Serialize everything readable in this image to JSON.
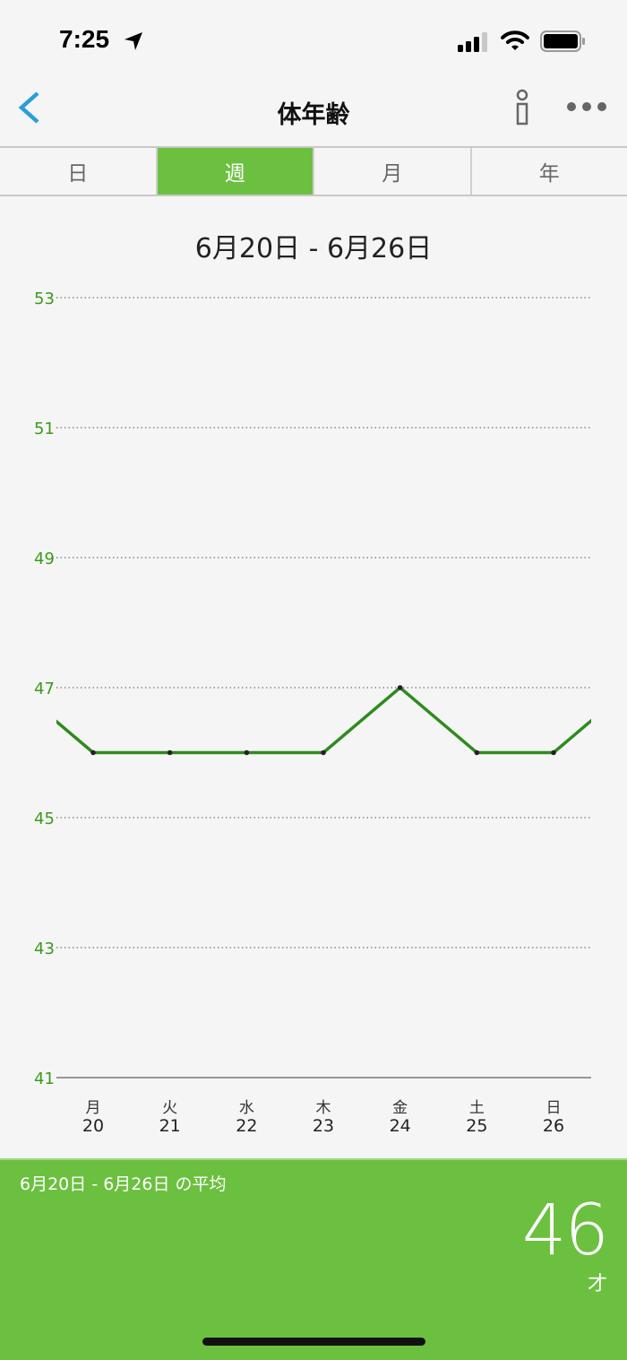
{
  "status_bar": {
    "time": "7:25",
    "icons": [
      "location-arrow-icon",
      "signal-icon",
      "wifi-icon",
      "battery-icon"
    ]
  },
  "nav": {
    "title": "体年齢",
    "back_icon": "chevron-left-icon",
    "info_icon": "info-icon",
    "more_icon": "more-dots-icon"
  },
  "tabs": [
    {
      "label": "日",
      "active": false
    },
    {
      "label": "週",
      "active": true
    },
    {
      "label": "月",
      "active": false
    },
    {
      "label": "年",
      "active": false
    }
  ],
  "date_range": "6月20日 - 6月26日",
  "chart_data": {
    "type": "line",
    "yticks": [
      "53",
      "51",
      "49",
      "47",
      "45",
      "43",
      "41"
    ],
    "ylim": [
      41,
      53
    ],
    "grid": true,
    "categories": [
      {
        "weekday": "月",
        "day": "20"
      },
      {
        "weekday": "火",
        "day": "21"
      },
      {
        "weekday": "水",
        "day": "22"
      },
      {
        "weekday": "木",
        "day": "23"
      },
      {
        "weekday": "金",
        "day": "24"
      },
      {
        "weekday": "土",
        "day": "25"
      },
      {
        "weekday": "日",
        "day": "26"
      }
    ],
    "values": [
      46,
      46,
      46,
      46,
      47,
      46,
      46
    ],
    "adjacent_values": {
      "previous": 47,
      "next": 47
    },
    "line_color": "#2e8b1e",
    "tick_color": "#3a9a1a"
  },
  "summary": {
    "label": "6月20日 - 6月26日 の平均",
    "value": "46",
    "unit": "才"
  },
  "colors": {
    "accent": "#6cc040",
    "back": "#2a9fd8"
  }
}
